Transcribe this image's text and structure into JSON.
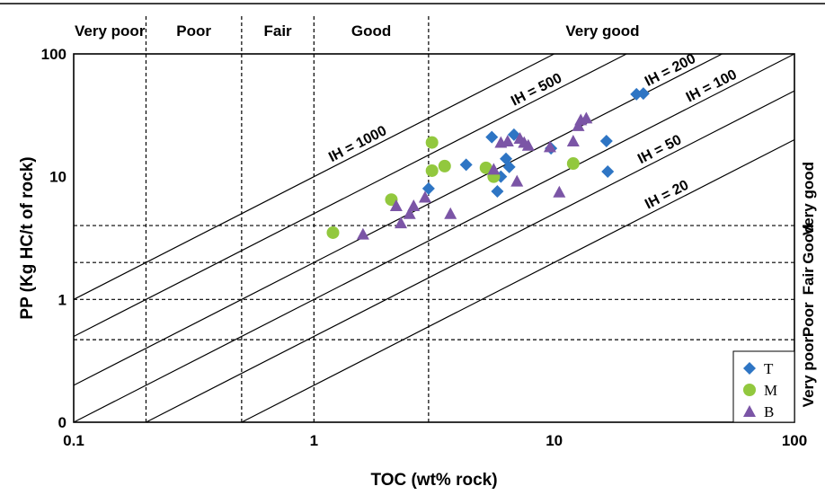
{
  "chart_data": {
    "type": "scatter",
    "xlabel": "TOC (wt% rock)",
    "ylabel": "PP (Kg HC/t of rock)",
    "x_scale": "log",
    "y_scale": "log",
    "xlim": [
      0.1,
      100
    ],
    "ylim": [
      0.1,
      100
    ],
    "x_ticks": [
      {
        "value": 0.1,
        "label": "0.1"
      },
      {
        "value": 1,
        "label": "1"
      },
      {
        "value": 10,
        "label": "10"
      },
      {
        "value": 100,
        "label": "100"
      }
    ],
    "y_ticks": [
      {
        "value": 0.1,
        "label": "0"
      },
      {
        "value": 1,
        "label": "1"
      },
      {
        "value": 10,
        "label": "10"
      },
      {
        "value": 100,
        "label": "100"
      }
    ],
    "toc_boundaries": [
      0.2,
      0.5,
      1,
      3
    ],
    "pp_boundaries": [
      0.47,
      1.0,
      2.0,
      4.0
    ],
    "toc_categories": [
      "Very poor",
      "Poor",
      "Fair",
      "Good",
      "Very good"
    ],
    "pp_categories": [
      "Very poor",
      "Poor",
      "Fair",
      "Good",
      "Very good"
    ],
    "ih_lines": [
      {
        "label": "IH = 1000",
        "ih": 1000
      },
      {
        "label": "IH = 500",
        "ih": 500
      },
      {
        "label": "IH = 200",
        "ih": 200
      },
      {
        "label": "IH = 100",
        "ih": 100
      },
      {
        "label": "IH = 50",
        "ih": 50
      },
      {
        "label": "IH = 20",
        "ih": 20
      }
    ],
    "legend_position": "bottom-right",
    "series": [
      {
        "name": "T",
        "marker": "diamond",
        "color": "#2e75c4",
        "points": [
          [
            3.0,
            8.0
          ],
          [
            4.3,
            12.5
          ],
          [
            5.5,
            21.0
          ],
          [
            5.8,
            7.6
          ],
          [
            6.0,
            10.0
          ],
          [
            6.3,
            14.0
          ],
          [
            6.5,
            12.0
          ],
          [
            6.8,
            22.0
          ],
          [
            9.7,
            17.0
          ],
          [
            16.5,
            19.5
          ],
          [
            16.7,
            11.0
          ],
          [
            22.0,
            47.0
          ],
          [
            23.5,
            47.5
          ]
        ]
      },
      {
        "name": "M",
        "marker": "circle",
        "color": "#92c83e",
        "points": [
          [
            1.2,
            3.5
          ],
          [
            2.1,
            6.5
          ],
          [
            3.1,
            19.0
          ],
          [
            3.1,
            11.2
          ],
          [
            3.5,
            12.2
          ],
          [
            5.2,
            11.8
          ],
          [
            5.6,
            10.0
          ],
          [
            12.0,
            12.8
          ]
        ]
      },
      {
        "name": "B",
        "marker": "triangle",
        "color": "#7b55a6",
        "points": [
          [
            1.6,
            3.4
          ],
          [
            2.2,
            5.8
          ],
          [
            2.3,
            4.2
          ],
          [
            2.5,
            5.0
          ],
          [
            2.6,
            5.8
          ],
          [
            2.9,
            6.8
          ],
          [
            3.7,
            5.0
          ],
          [
            5.6,
            11.5
          ],
          [
            6.0,
            19.0
          ],
          [
            6.4,
            19.5
          ],
          [
            7.0,
            9.2
          ],
          [
            7.2,
            20.5
          ],
          [
            7.5,
            19.0
          ],
          [
            7.8,
            18.0
          ],
          [
            9.6,
            17.5
          ],
          [
            10.5,
            7.5
          ],
          [
            12.0,
            19.5
          ],
          [
            12.6,
            26.0
          ],
          [
            12.9,
            29.0
          ],
          [
            13.6,
            30.0
          ]
        ]
      }
    ]
  }
}
